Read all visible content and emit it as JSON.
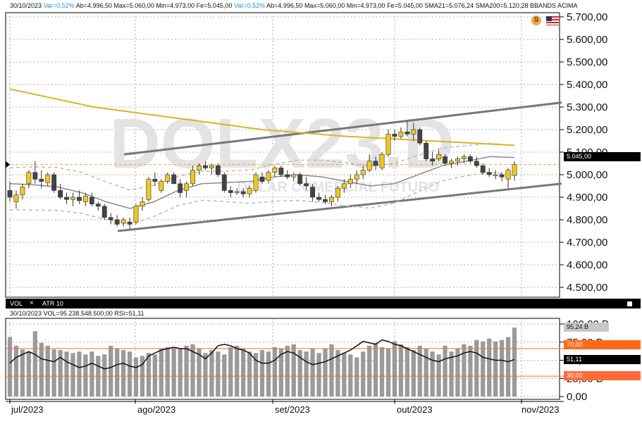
{
  "header": {
    "date": "30/10/2023",
    "var1": "Var=0,52%",
    "open1": "Ab=4.996,50",
    "max1": "Max=5.060,00",
    "min1": "Min=4.973,00",
    "close1": "Fe=5.045,00",
    "var2": "Var=0,52%",
    "open2": "Ab=4.996,50",
    "max2": "Max=5.060,00",
    "min2": "Min=4.973,00",
    "close2": "Fe=5.045,00",
    "sma21": "SMA21=5.076,24",
    "sma200": "SMA200=5.120,28",
    "bbands": "BBANDS ACIMA"
  },
  "watermark": {
    "symbol": "DOLX23.D",
    "name": "DOLAR COMERCIAL FUTURO"
  },
  "price_axis": {
    "ticks": [
      "5.700,00",
      "5.600,00",
      "5.500,00",
      "5.400,00",
      "5.300,00",
      "5.200,00",
      "5.100,00",
      "5.000,00",
      "4.900,00",
      "4.800,00",
      "4.700,00",
      "4.600,00",
      "4.500,00"
    ],
    "current_label": "5.045,00"
  },
  "lower_panel": {
    "tab_vol": "VOL",
    "close_icon": "×",
    "tab_atr": "ATR 10",
    "date": "30/10/2023",
    "vol_text": "VOL=95.238.548.500,00",
    "rsi_text": "RSI=51,11",
    "axis_ticks": [
      "100,00 B",
      "75,00 B",
      "50,00 B",
      "25,00 B",
      "0,00"
    ],
    "tag_vol": "95,24 B",
    "tag_70": "70,00",
    "tag_rsi": "51,11",
    "tag_30": "30,00"
  },
  "x_axis": {
    "labels": [
      "jul/2023",
      "ago/2023",
      "set/2023",
      "out/2023",
      "nov/2023"
    ]
  },
  "colors": {
    "up": "#f0c81e",
    "down": "#444444",
    "sma200": "#d8b52c",
    "sma21": "#8a8a8a",
    "channel": "#777777",
    "ref_line": "#f2a33c",
    "rsi_line": "#111111",
    "ob_line": "#ff6a3a",
    "vol_bar": "#9a9a9a"
  },
  "chart_data": [
    {
      "type": "candlestick",
      "title": "",
      "ylim": [
        4500,
        5700
      ],
      "candles": [
        {
          "o": 4930,
          "h": 4970,
          "l": 4880,
          "c": 4900
        },
        {
          "o": 4880,
          "h": 4930,
          "l": 4850,
          "c": 4910
        },
        {
          "o": 4910,
          "h": 4960,
          "l": 4890,
          "c": 4945
        },
        {
          "o": 4960,
          "h": 5020,
          "l": 4940,
          "c": 5010
        },
        {
          "o": 5010,
          "h": 5060,
          "l": 4960,
          "c": 4980
        },
        {
          "o": 4980,
          "h": 5020,
          "l": 4940,
          "c": 4970
        },
        {
          "o": 4965,
          "h": 5010,
          "l": 4950,
          "c": 5000
        },
        {
          "o": 5000,
          "h": 5010,
          "l": 4920,
          "c": 4930
        },
        {
          "o": 4930,
          "h": 4960,
          "l": 4890,
          "c": 4900
        },
        {
          "o": 4900,
          "h": 4920,
          "l": 4870,
          "c": 4890
        },
        {
          "o": 4890,
          "h": 4920,
          "l": 4860,
          "c": 4900
        },
        {
          "o": 4900,
          "h": 4930,
          "l": 4870,
          "c": 4885
        },
        {
          "o": 4880,
          "h": 4920,
          "l": 4860,
          "c": 4905
        },
        {
          "o": 4900,
          "h": 4920,
          "l": 4860,
          "c": 4870
        },
        {
          "o": 4870,
          "h": 4880,
          "l": 4840,
          "c": 4860
        },
        {
          "o": 4860,
          "h": 4870,
          "l": 4800,
          "c": 4810
        },
        {
          "o": 4810,
          "h": 4830,
          "l": 4780,
          "c": 4800
        },
        {
          "o": 4800,
          "h": 4820,
          "l": 4770,
          "c": 4780
        },
        {
          "o": 4785,
          "h": 4810,
          "l": 4770,
          "c": 4800
        },
        {
          "o": 4790,
          "h": 4810,
          "l": 4760,
          "c": 4780
        },
        {
          "o": 4790,
          "h": 4870,
          "l": 4780,
          "c": 4860
        },
        {
          "o": 4860,
          "h": 4900,
          "l": 4840,
          "c": 4880
        },
        {
          "o": 4890,
          "h": 4990,
          "l": 4880,
          "c": 4980
        },
        {
          "o": 4980,
          "h": 5010,
          "l": 4950,
          "c": 4970
        },
        {
          "o": 4930,
          "h": 4980,
          "l": 4920,
          "c": 4970
        },
        {
          "o": 4970,
          "h": 5010,
          "l": 4960,
          "c": 5000
        },
        {
          "o": 5000,
          "h": 5010,
          "l": 4960,
          "c": 4960
        },
        {
          "o": 4960,
          "h": 4980,
          "l": 4900,
          "c": 4920
        },
        {
          "o": 4930,
          "h": 4970,
          "l": 4900,
          "c": 4960
        },
        {
          "o": 4960,
          "h": 5040,
          "l": 4950,
          "c": 5020
        },
        {
          "o": 5020,
          "h": 5050,
          "l": 5000,
          "c": 5040
        },
        {
          "o": 5040,
          "h": 5060,
          "l": 5020,
          "c": 5030
        },
        {
          "o": 5030,
          "h": 5050,
          "l": 5000,
          "c": 5040
        },
        {
          "o": 5040,
          "h": 5050,
          "l": 4990,
          "c": 5000
        },
        {
          "o": 5000,
          "h": 5010,
          "l": 4920,
          "c": 4930
        },
        {
          "o": 4930,
          "h": 4950,
          "l": 4900,
          "c": 4920
        },
        {
          "o": 4920,
          "h": 4940,
          "l": 4910,
          "c": 4925
        },
        {
          "o": 4925,
          "h": 4940,
          "l": 4900,
          "c": 4915
        },
        {
          "o": 4915,
          "h": 4950,
          "l": 4900,
          "c": 4940
        },
        {
          "o": 4930,
          "h": 5010,
          "l": 4920,
          "c": 5000
        },
        {
          "o": 4990,
          "h": 5010,
          "l": 4960,
          "c": 4970
        },
        {
          "o": 4975,
          "h": 5020,
          "l": 4960,
          "c": 5010
        },
        {
          "o": 5010,
          "h": 5040,
          "l": 4990,
          "c": 5030
        },
        {
          "o": 5030,
          "h": 5040,
          "l": 4990,
          "c": 5000
        },
        {
          "o": 5000,
          "h": 5020,
          "l": 4980,
          "c": 4990
        },
        {
          "o": 4990,
          "h": 5010,
          "l": 4970,
          "c": 5000
        },
        {
          "o": 5000,
          "h": 5010,
          "l": 4950,
          "c": 4960
        },
        {
          "o": 4960,
          "h": 4990,
          "l": 4930,
          "c": 4950
        },
        {
          "o": 4945,
          "h": 4960,
          "l": 4880,
          "c": 4900
        },
        {
          "o": 4900,
          "h": 4920,
          "l": 4880,
          "c": 4890
        },
        {
          "o": 4890,
          "h": 4910,
          "l": 4870,
          "c": 4880
        },
        {
          "o": 4880,
          "h": 4910,
          "l": 4860,
          "c": 4900
        },
        {
          "o": 4900,
          "h": 4950,
          "l": 4880,
          "c": 4940
        },
        {
          "o": 4940,
          "h": 4980,
          "l": 4920,
          "c": 4960
        },
        {
          "o": 4960,
          "h": 5000,
          "l": 4940,
          "c": 4980
        },
        {
          "o": 4980,
          "h": 5020,
          "l": 4960,
          "c": 5000
        },
        {
          "o": 5000,
          "h": 5040,
          "l": 4980,
          "c": 5020
        },
        {
          "o": 5020,
          "h": 5090,
          "l": 5010,
          "c": 5060
        },
        {
          "o": 5060,
          "h": 5080,
          "l": 5020,
          "c": 5040
        },
        {
          "o": 5030,
          "h": 5100,
          "l": 5020,
          "c": 5090
        },
        {
          "o": 5090,
          "h": 5200,
          "l": 5080,
          "c": 5180
        },
        {
          "o": 5180,
          "h": 5200,
          "l": 5150,
          "c": 5170
        },
        {
          "o": 5170,
          "h": 5210,
          "l": 5160,
          "c": 5190
        },
        {
          "o": 5190,
          "h": 5240,
          "l": 5170,
          "c": 5180
        },
        {
          "o": 5180,
          "h": 5230,
          "l": 5150,
          "c": 5200
        },
        {
          "o": 5200,
          "h": 5210,
          "l": 5130,
          "c": 5140
        },
        {
          "o": 5140,
          "h": 5150,
          "l": 5060,
          "c": 5070
        },
        {
          "o": 5070,
          "h": 5100,
          "l": 5040,
          "c": 5060
        },
        {
          "o": 5070,
          "h": 5110,
          "l": 5060,
          "c": 5090
        },
        {
          "o": 5080,
          "h": 5090,
          "l": 5040,
          "c": 5050
        },
        {
          "o": 5050,
          "h": 5070,
          "l": 5030,
          "c": 5060
        },
        {
          "o": 5060,
          "h": 5080,
          "l": 5040,
          "c": 5070
        },
        {
          "o": 5070,
          "h": 5090,
          "l": 5050,
          "c": 5080
        },
        {
          "o": 5080,
          "h": 5090,
          "l": 5050,
          "c": 5060
        },
        {
          "o": 5060,
          "h": 5080,
          "l": 5030,
          "c": 5040
        },
        {
          "o": 5040,
          "h": 5050,
          "l": 5000,
          "c": 5010
        },
        {
          "o": 5010,
          "h": 5030,
          "l": 4990,
          "c": 5000
        },
        {
          "o": 5000,
          "h": 5020,
          "l": 4980,
          "c": 5000
        },
        {
          "o": 5000,
          "h": 5010,
          "l": 4970,
          "c": 4990
        },
        {
          "o": 4980,
          "h": 5030,
          "l": 4940,
          "c": 5020
        },
        {
          "o": 4996.5,
          "h": 5060,
          "l": 4973,
          "c": 5045
        }
      ],
      "sma200": [
        5380,
        5300,
        5250,
        5200,
        5170,
        5150,
        5130
      ],
      "sma21": [
        4960,
        4955,
        4945,
        4920,
        4880,
        4850,
        4880,
        4930,
        4960,
        4965,
        4970,
        4990,
        5000,
        4990,
        4970,
        4950,
        4960,
        5000,
        5040,
        5060,
        5080,
        5076
      ],
      "channel_upper": [
        [
          4.8,
          5.15
        ],
        [
          7.8,
          5.33
        ]
      ],
      "channel_lower": [
        [
          2.4,
          4.75
        ],
        [
          7.8,
          4.95
        ]
      ],
      "mid_line": [
        [
          2.4,
          5.1
        ],
        [
          7.4,
          5.15
        ]
      ],
      "ref_level": 5045
    },
    {
      "type": "bar",
      "title": "",
      "ylim": [
        0,
        100
      ],
      "volume_b": [
        82,
        70,
        65,
        62,
        90,
        74,
        70,
        65,
        64,
        62,
        60,
        62,
        58,
        62,
        56,
        58,
        70,
        66,
        64,
        62,
        54,
        56,
        60,
        58,
        66,
        68,
        68,
        66,
        70,
        72,
        66,
        60,
        64,
        62,
        58,
        68,
        70,
        66,
        62,
        60,
        64,
        62,
        68,
        66,
        70,
        72,
        64,
        62,
        66,
        60,
        66,
        72,
        64,
        60,
        58,
        54,
        62,
        70,
        74,
        68,
        66,
        76,
        72,
        68,
        64,
        70,
        66,
        62,
        58,
        70,
        62,
        66,
        72,
        70,
        78,
        76,
        80,
        76,
        78,
        82,
        95
      ],
      "rsi": [
        46,
        54,
        58,
        62,
        58,
        52,
        50,
        48,
        54,
        48,
        44,
        40,
        42,
        46,
        42,
        38,
        40,
        44,
        46,
        42,
        40,
        44,
        56,
        60,
        64,
        66,
        68,
        66,
        66,
        62,
        58,
        52,
        60,
        70,
        72,
        70,
        66,
        64,
        60,
        50,
        46,
        46,
        50,
        58,
        62,
        60,
        54,
        48,
        44,
        46,
        48,
        52,
        56,
        60,
        64,
        70,
        76,
        74,
        72,
        78,
        76,
        72,
        70,
        66,
        62,
        58,
        54,
        50,
        48,
        52,
        54,
        56,
        60,
        62,
        60,
        54,
        52,
        50,
        50,
        48,
        51
      ]
    }
  ]
}
